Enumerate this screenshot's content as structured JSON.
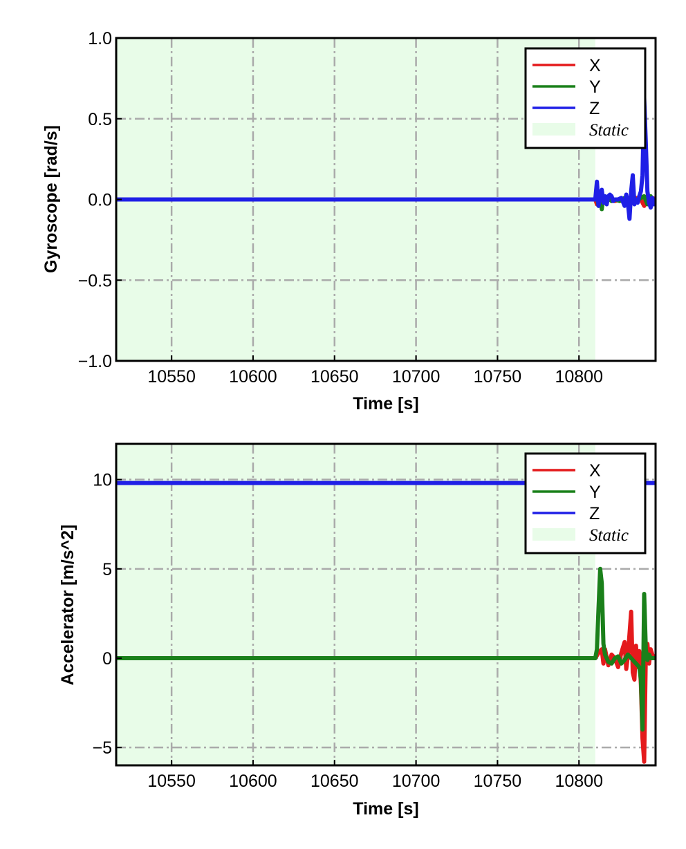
{
  "chart_data": [
    {
      "type": "line",
      "title": "",
      "xlabel": "Time [s]",
      "ylabel": "Gyroscope [rad/s]",
      "xlim": [
        10516,
        10847
      ],
      "ylim": [
        -1.0,
        1.0
      ],
      "x_ticks": [
        10550,
        10600,
        10650,
        10700,
        10750,
        10800
      ],
      "x_tick_labels": [
        "10550",
        "10600",
        "10650",
        "10700",
        "10750",
        "10800"
      ],
      "y_ticks": [
        -1.0,
        -0.5,
        0.0,
        0.5,
        1.0
      ],
      "y_tick_labels": [
        "−1.0",
        "−0.5",
        "0.0",
        "0.5",
        "1.0"
      ],
      "grid": true,
      "legend_position": "top-right",
      "static_region": {
        "label": "Static",
        "x": [
          10516,
          10810
        ],
        "color": "#e8fce8"
      },
      "series": [
        {
          "name": "X",
          "color": "#e41a1c",
          "x": [
            10516,
            10810,
            10811,
            10812,
            10813,
            10814,
            10815,
            10816,
            10818,
            10820,
            10822,
            10825,
            10828,
            10830,
            10833,
            10835,
            10838,
            10840,
            10842,
            10844,
            10845,
            10847
          ],
          "y": [
            0.0,
            0.0,
            -0.03,
            0.02,
            -0.02,
            0.04,
            0.01,
            -0.02,
            0.01,
            0.0,
            -0.01,
            0.0,
            -0.02,
            0.01,
            -0.02,
            0.01,
            0.0,
            -0.04,
            0.02,
            -0.02,
            0.01,
            0.0
          ]
        },
        {
          "name": "Y",
          "color": "#1a801a",
          "x": [
            10516,
            10810,
            10811,
            10812,
            10813,
            10814,
            10815,
            10816,
            10818,
            10820,
            10822,
            10825,
            10828,
            10830,
            10833,
            10835,
            10838,
            10840,
            10842,
            10844,
            10845,
            10847
          ],
          "y": [
            0.0,
            0.0,
            0.02,
            -0.04,
            0.03,
            -0.06,
            0.02,
            -0.02,
            0.01,
            -0.01,
            0.0,
            -0.01,
            0.01,
            -0.02,
            0.03,
            -0.01,
            0.01,
            0.02,
            -0.03,
            0.02,
            -0.02,
            0.0
          ]
        },
        {
          "name": "Z",
          "color": "#1f1fe6",
          "x": [
            10516,
            10810,
            10811,
            10812,
            10813,
            10814,
            10815,
            10816,
            10817,
            10818,
            10819,
            10820,
            10821,
            10822,
            10824,
            10826,
            10828,
            10829,
            10830,
            10831,
            10832,
            10833,
            10834,
            10835,
            10836,
            10837,
            10838,
            10839,
            10840,
            10841,
            10842,
            10843,
            10844,
            10845,
            10846,
            10847
          ],
          "y": [
            0.0,
            0.0,
            0.11,
            -0.04,
            0.03,
            0.06,
            -0.02,
            0.02,
            -0.03,
            0.02,
            0.03,
            0.02,
            -0.01,
            0.0,
            0.0,
            0.01,
            -0.04,
            0.03,
            -0.02,
            -0.12,
            0.05,
            0.15,
            -0.03,
            0.0,
            -0.02,
            0.02,
            0.05,
            0.15,
            0.63,
            0.35,
            0.05,
            -0.02,
            -0.05,
            0.01,
            -0.03,
            0.0
          ]
        }
      ]
    },
    {
      "type": "line",
      "title": "",
      "xlabel": "Time [s]",
      "ylabel": "Accelerator [m/s^2]",
      "xlim": [
        10516,
        10847
      ],
      "ylim": [
        -6,
        12
      ],
      "x_ticks": [
        10550,
        10600,
        10650,
        10700,
        10750,
        10800
      ],
      "x_tick_labels": [
        "10550",
        "10600",
        "10650",
        "10700",
        "10750",
        "10800"
      ],
      "y_ticks": [
        -5,
        0,
        5,
        10
      ],
      "y_tick_labels": [
        "−5",
        "0",
        "5",
        "10"
      ],
      "grid": true,
      "legend_position": "top-right",
      "static_region": {
        "label": "Static",
        "x": [
          10516,
          10810
        ],
        "color": "#e8fce8"
      },
      "series": [
        {
          "name": "X",
          "color": "#e41a1c",
          "x": [
            10516,
            10810,
            10812,
            10814,
            10815,
            10816,
            10818,
            10820,
            10822,
            10824,
            10826,
            10828,
            10829,
            10830,
            10832,
            10833,
            10834,
            10835,
            10836,
            10837,
            10838,
            10839,
            10840,
            10841,
            10842,
            10843,
            10844,
            10845,
            10846,
            10847
          ],
          "y": [
            0.0,
            0.0,
            0.3,
            0.5,
            -0.3,
            0.5,
            -0.4,
            0.2,
            0.0,
            -0.5,
            0.3,
            0.9,
            -0.6,
            0.1,
            2.6,
            -0.8,
            -1.2,
            0.7,
            -0.5,
            0.4,
            -1.5,
            -4.5,
            -5.8,
            0.2,
            0.8,
            -0.3,
            0.5,
            0.2,
            0.0,
            0.0
          ]
        },
        {
          "name": "Y",
          "color": "#1a801a",
          "x": [
            10516,
            10810,
            10811,
            10812,
            10813,
            10814,
            10815,
            10816,
            10818,
            10820,
            10822,
            10824,
            10826,
            10828,
            10830,
            10832,
            10834,
            10836,
            10837,
            10838,
            10839,
            10840,
            10841,
            10842,
            10843,
            10844,
            10845,
            10846,
            10847
          ],
          "y": [
            0.0,
            0.0,
            0.5,
            2.8,
            5.0,
            4.2,
            0.8,
            0.2,
            -0.2,
            -0.3,
            0.0,
            0.1,
            -0.3,
            -0.1,
            0.2,
            0.0,
            -0.2,
            -0.4,
            -0.5,
            -1.2,
            -4.0,
            3.6,
            0.5,
            -0.1,
            0.2,
            0.0,
            0.0,
            0.0,
            0.0
          ]
        },
        {
          "name": "Z",
          "color": "#1f1fe6",
          "x": [
            10516,
            10847
          ],
          "y": [
            9.81,
            9.81
          ]
        }
      ]
    }
  ]
}
